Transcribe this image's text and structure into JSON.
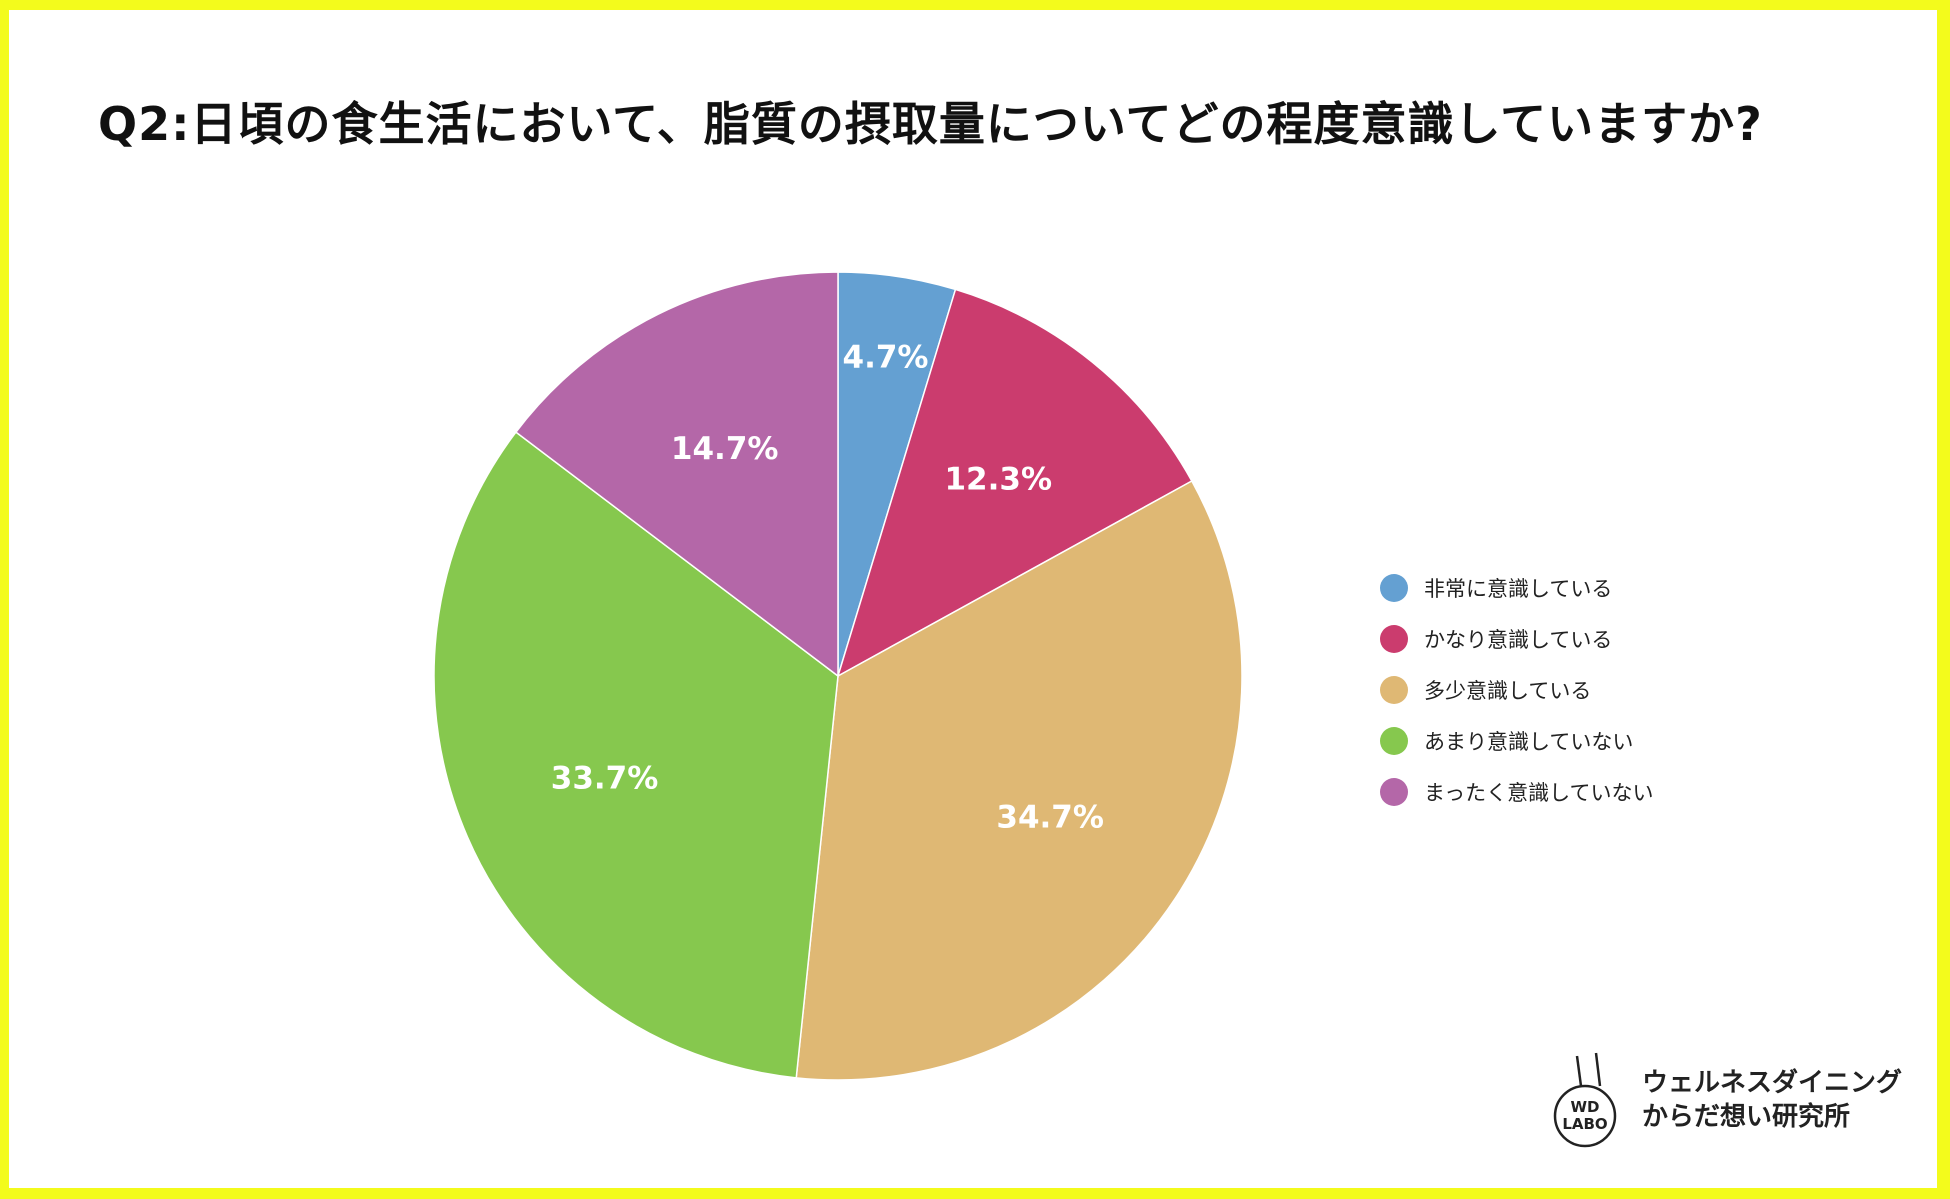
{
  "title": "Q2:日頃の食生活において、脂質の摂取量についてどの程度意識していますか?",
  "chart_data": {
    "type": "pie",
    "title": "Q2:日頃の食生活において、脂質の摂取量についてどの程度意識していますか?",
    "categories": [
      "非常に意識している",
      "かなり意識している",
      "多少意識している",
      "あまり意識していない",
      "まったく意識していない"
    ],
    "values": [
      4.7,
      12.3,
      34.7,
      33.7,
      14.7
    ],
    "labels": [
      "4.7%",
      "12.3%",
      "34.7%",
      "33.7%",
      "14.7%"
    ],
    "colors": [
      "#64a0d2",
      "#cb3c6e",
      "#dfb874",
      "#86c84e",
      "#b467a8"
    ],
    "start_angle_deg": 0,
    "direction": "clockwise",
    "legend_position": "right"
  },
  "legend": [
    {
      "label": "非常に意識している",
      "color": "#64a0d2"
    },
    {
      "label": "かなり意識している",
      "color": "#cb3c6e"
    },
    {
      "label": "多少意識している",
      "color": "#dfb874"
    },
    {
      "label": "あまり意識していない",
      "color": "#86c84e"
    },
    {
      "label": "まったく意識していない",
      "color": "#b467a8"
    }
  ],
  "logo": {
    "badge_line1": "WD",
    "badge_line2": "LABO",
    "name_line1": "ウェルネスダイニング",
    "name_line2": "からだ想い研究所"
  }
}
